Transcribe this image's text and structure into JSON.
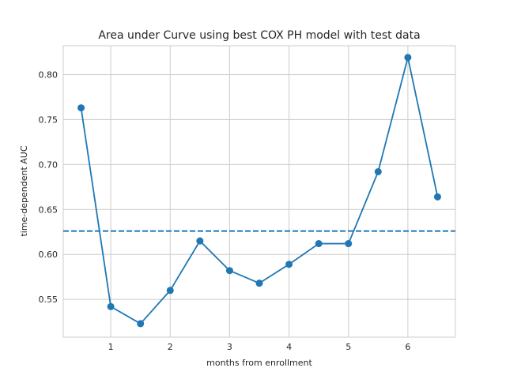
{
  "chart_data": {
    "type": "line",
    "title": "Area under Curve using best COX PH model with test data",
    "xlabel": "months from enrollment",
    "ylabel": "time-dependent AUC",
    "xlim": [
      0.2,
      6.8
    ],
    "ylim": [
      0.508,
      0.832
    ],
    "xticks": [
      1,
      2,
      3,
      4,
      5,
      6
    ],
    "yticks": [
      0.55,
      0.6,
      0.65,
      0.7,
      0.75,
      0.8
    ],
    "ytick_labels": [
      "0.55",
      "0.60",
      "0.65",
      "0.70",
      "0.75",
      "0.80"
    ],
    "grid": true,
    "series": [
      {
        "x": [
          0.5,
          1.0,
          1.5,
          2.0,
          2.5,
          3.0,
          3.5,
          4.0,
          4.5,
          5.0,
          5.5,
          6.0,
          6.5
        ],
        "values": [
          0.763,
          0.542,
          0.523,
          0.56,
          0.615,
          0.582,
          0.568,
          0.589,
          0.612,
          0.612,
          0.692,
          0.819,
          0.664
        ],
        "color": "#1f77b4",
        "marker": "circle"
      }
    ],
    "reference_line": {
      "y": 0.626,
      "style": "dashed",
      "color": "#1f77b4"
    }
  }
}
